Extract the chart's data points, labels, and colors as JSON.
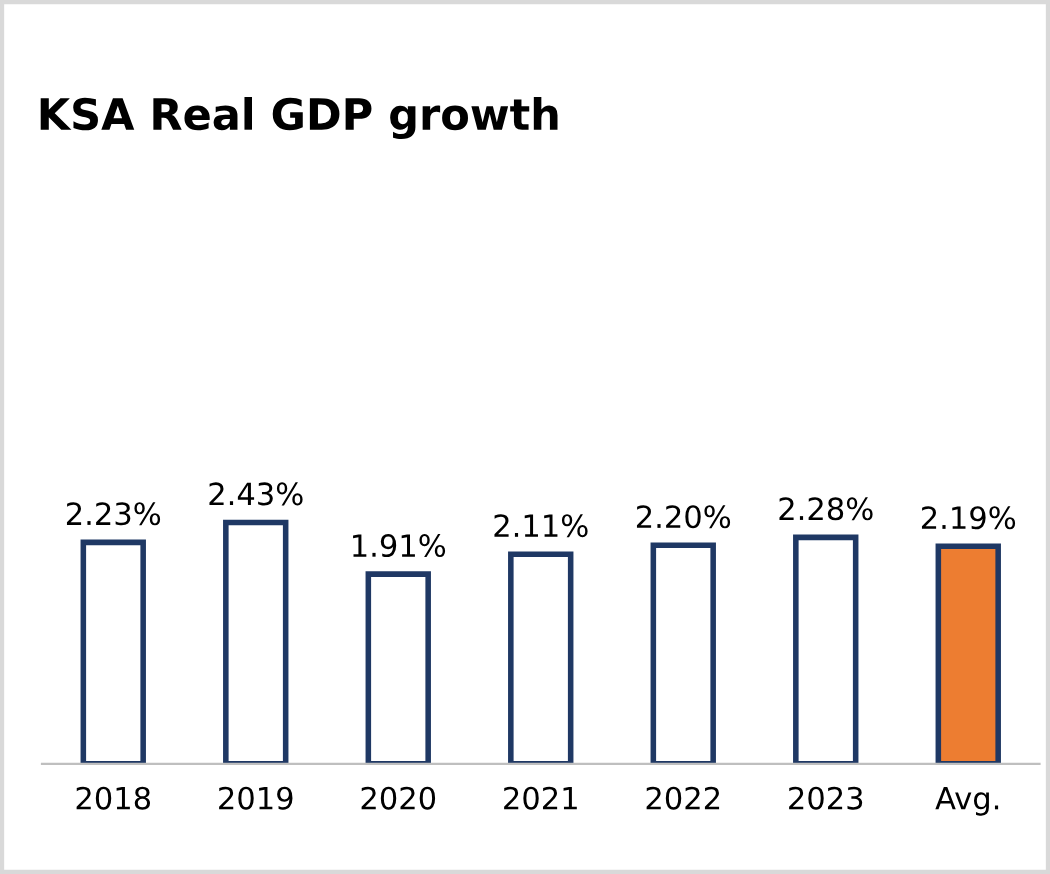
{
  "chart_data": {
    "type": "bar",
    "title": "KSA Real GDP growth",
    "categories": [
      "2018",
      "2019",
      "2020",
      "2021",
      "2022",
      "2023",
      "Avg."
    ],
    "values": [
      2.23,
      2.43,
      1.91,
      2.11,
      2.2,
      2.28,
      2.19
    ],
    "colors": [
      "#ffffff",
      "#ffffff",
      "#ffffff",
      "#ffffff",
      "#ffffff",
      "#ffffff",
      "#ed7d31"
    ],
    "value_labels": [
      "2.23%",
      "2.43%",
      "1.91%",
      "2.11%",
      "2.20%",
      "2.28%",
      "2.19%"
    ],
    "grid": false,
    "legend": false
  }
}
